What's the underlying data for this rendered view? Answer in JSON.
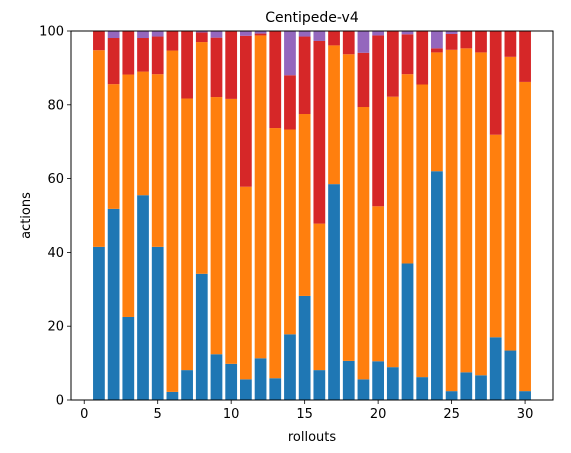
{
  "chart_data": {
    "type": "bar",
    "stacked": true,
    "title": "Centipede-v4",
    "xlabel": "rollouts",
    "ylabel": "actions",
    "xlim": [
      -0.9,
      31.9
    ],
    "ylim": [
      0,
      100
    ],
    "xticks": [
      0,
      5,
      10,
      15,
      20,
      25,
      30
    ],
    "yticks": [
      0,
      20,
      40,
      60,
      80,
      100
    ],
    "grid": false,
    "legend": "none",
    "x": [
      1,
      2,
      3,
      4,
      5,
      6,
      7,
      8,
      9,
      10,
      11,
      12,
      13,
      14,
      15,
      16,
      17,
      18,
      19,
      20,
      21,
      22,
      23,
      24,
      25,
      26,
      27,
      28,
      29,
      30
    ],
    "series": [
      {
        "color": "#1f77b4",
        "values": [
          41.5,
          51.8,
          22.5,
          55.5,
          41.5,
          2.2,
          8.1,
          34.2,
          12.4,
          9.8,
          5.6,
          11.3,
          5.9,
          17.8,
          28.2,
          8.1,
          58.5,
          10.6,
          5.6,
          10.5,
          8.9,
          37.0,
          6.2,
          62.0,
          2.4,
          7.5,
          6.7,
          17.0,
          13.4,
          2.4
        ]
      },
      {
        "color": "#ff7f0e",
        "values": [
          53.3,
          33.8,
          65.7,
          33.5,
          46.8,
          92.5,
          73.6,
          62.8,
          69.7,
          71.8,
          52.2,
          87.5,
          67.8,
          55.5,
          49.3,
          39.7,
          37.6,
          83.1,
          73.8,
          42.0,
          73.3,
          51.3,
          79.3,
          32.2,
          92.5,
          87.8,
          87.5,
          54.9,
          79.6,
          83.8
        ]
      },
      {
        "color": "#d62728",
        "values": [
          5.2,
          12.5,
          11.8,
          9.1,
          10.2,
          5.3,
          18.3,
          2.6,
          16.1,
          18.4,
          40.9,
          0.5,
          26.3,
          14.7,
          21.0,
          49.5,
          3.9,
          6.3,
          14.7,
          46.3,
          17.8,
          10.8,
          14.5,
          1.1,
          4.3,
          4.7,
          5.8,
          28.1,
          7.0,
          13.8
        ]
      },
      {
        "color": "#9467bd",
        "values": [
          0,
          1.9,
          0,
          1.9,
          1.5,
          0,
          0,
          0.4,
          1.8,
          0,
          1.3,
          0.7,
          0,
          12.0,
          1.5,
          2.7,
          0,
          0,
          5.9,
          1.2,
          0,
          0.9,
          0,
          4.7,
          0.8,
          0,
          0,
          0,
          0,
          0
        ]
      }
    ]
  }
}
